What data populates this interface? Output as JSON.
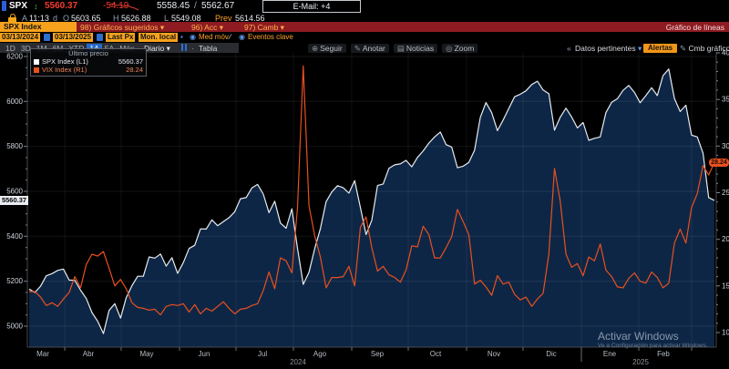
{
  "colors": {
    "amber": "#f6a21d",
    "red_bar": "#8e1b21",
    "down_red": "#f53b30",
    "selected_blue": "#2569c8",
    "spx_line": "#e7ecf1",
    "spx_fill": "#0e2646",
    "vix_line": "#e8501e"
  },
  "quote_bar": {
    "ticker": "SPX",
    "last": "5560.37",
    "change": "-54.19",
    "bid": "5558.45",
    "sep": "/",
    "ask": "5562.67",
    "email": "E-Mail: +4"
  },
  "ohlc_bar": {
    "a": "A",
    "time": "11:13",
    "d": "d",
    "o_label": "O",
    "open": "5603.65",
    "h_label": "H",
    "high": "5626.88",
    "l_label": "L",
    "low": "5549.08",
    "prev_label": "Prev",
    "prev": "5614.56"
  },
  "menu_bar": {
    "security": "SPX Index",
    "items": [
      "98) Gráficos sugeridos ▾",
      "96) Acc ▾",
      "97) Camb ▾"
    ],
    "chart_type": "Gráfico de líneas"
  },
  "settings_bar": {
    "date_from": "03/13/2024",
    "date_to": "03/13/2025",
    "price_source": "Last Px",
    "currency": "Mon. local",
    "mov_avg": "Med móv",
    "key_events": "Eventos clave"
  },
  "toolbar": {
    "periods": [
      "1D",
      "3D",
      "1M",
      "6M",
      "YTD",
      "1A",
      "5A",
      "Máx"
    ],
    "selected_period": "1A",
    "interval": "Diario",
    "table_label": "Tabla",
    "relevant_data": "Datos pertinentes",
    "alerts_button": "Alertas",
    "edit_chart": "Cmb gráfico"
  },
  "chart_toolbar": [
    {
      "icon": "track-icon",
      "label": "Seguir"
    },
    {
      "icon": "pencil-icon",
      "label": "Anotar"
    },
    {
      "icon": "news-icon",
      "label": "Noticias"
    },
    {
      "icon": "zoom-icon",
      "label": "Zoom"
    }
  ],
  "legend": {
    "title": "Último precio",
    "rows": [
      {
        "name": "SPX Index (L1)",
        "value": "5560.37"
      },
      {
        "name": "VIX Index (R1)",
        "value": "28.24"
      }
    ]
  },
  "badges": {
    "left_price": "5560.37",
    "right_price": "28.24"
  },
  "watermark": {
    "line1": "Activar Windows",
    "line2": "Ve a Configuración para activar Windows."
  },
  "chart_data": {
    "type": "line",
    "x_range": [
      "03/13/2024",
      "03/13/2025"
    ],
    "x_month_labels": [
      "Mar",
      "Abr",
      "May",
      "Jun",
      "Jul",
      "Ago",
      "Sep",
      "Oct",
      "Nov",
      "Dic",
      "Ene",
      "Feb"
    ],
    "years": [
      "2024",
      "2025"
    ],
    "left_axis": {
      "label": "SPX",
      "min": 5000,
      "max": 6200,
      "ticks": [
        6200,
        6000,
        5800,
        5600,
        5400,
        5200,
        5000
      ]
    },
    "right_axis": {
      "label": "VIX",
      "min": 10,
      "max": 40,
      "ticks": [
        40,
        35,
        30,
        25,
        20,
        15,
        10
      ]
    },
    "grid": true,
    "series": [
      {
        "name": "SPX Index",
        "axis": "left",
        "color": "#e7ecf1",
        "fill": "#0e2646",
        "last": 5560.37,
        "values": [
          5165,
          5150,
          5178,
          5224,
          5234,
          5248,
          5254,
          5205,
          5204,
          5160,
          5123,
          5061,
          5022,
          4967,
          5070,
          5100,
          5036,
          5127,
          5180,
          5222,
          5222,
          5308,
          5303,
          5321,
          5267,
          5305,
          5235,
          5283,
          5346,
          5360,
          5433,
          5432,
          5473,
          5447,
          5465,
          5483,
          5509,
          5567,
          5572,
          5615,
          5631,
          5588,
          5505,
          5556,
          5459,
          5436,
          5522,
          5346,
          5186,
          5240,
          5344,
          5434,
          5554,
          5597,
          5625,
          5616,
          5592,
          5648,
          5528,
          5408,
          5471,
          5626,
          5633,
          5702,
          5718,
          5722,
          5738,
          5709,
          5751,
          5780,
          5815,
          5842,
          5864,
          5808,
          5797,
          5705,
          5712,
          5729,
          5783,
          5929,
          5995,
          5950,
          5870,
          5917,
          5969,
          6021,
          6032,
          6047,
          6075,
          6090,
          6051,
          6034,
          5872,
          5930,
          5970,
          5931,
          5882,
          5906,
          5827,
          5836,
          5842,
          5950,
          5996,
          6012,
          6049,
          6071,
          6040,
          5994,
          6026,
          6061,
          6026,
          6115,
          6144,
          6013,
          5955,
          5983,
          5850,
          5842,
          5770,
          5572,
          5560
        ]
      },
      {
        "name": "VIX Index",
        "axis": "right",
        "color": "#e8501e",
        "last": 28.24,
        "values": [
          14.4,
          14.4,
          13.8,
          12.9,
          13.2,
          12.8,
          13.6,
          14.3,
          16.0,
          14.8,
          17.3,
          18.4,
          18.2,
          18.7,
          16.9,
          15.0,
          15.7,
          14.7,
          13.2,
          12.7,
          12.6,
          12.4,
          12.5,
          11.9,
          12.8,
          13.0,
          12.9,
          13.1,
          12.2,
          13.0,
          12.0,
          12.6,
          12.3,
          12.8,
          13.3,
          12.6,
          12.0,
          12.5,
          12.6,
          12.9,
          13.1,
          14.5,
          16.5,
          14.7,
          18.0,
          17.7,
          16.4,
          23.4,
          38.6,
          23.6,
          20.4,
          18.1,
          14.8,
          15.9,
          15.9,
          16.0,
          17.1,
          15.0,
          21.3,
          22.4,
          19.1,
          16.6,
          17.1,
          16.2,
          15.9,
          15.4,
          16.7,
          19.3,
          19.2,
          21.4,
          20.5,
          18.0,
          18.0,
          19.1,
          20.3,
          23.2,
          21.9,
          20.5,
          15.2,
          15.6,
          14.9,
          14.0,
          16.1,
          15.2,
          15.4,
          14.1,
          13.5,
          13.8,
          12.8,
          13.6,
          14.2,
          18.4,
          27.6,
          24.1,
          18.4,
          17.0,
          17.4,
          16.1,
          18.1,
          17.7,
          19.5,
          16.7,
          16.0,
          14.9,
          14.8,
          15.8,
          16.4,
          15.5,
          15.3,
          16.5,
          15.9,
          14.8,
          15.3,
          19.6,
          21.1,
          19.6,
          23.4,
          24.9,
          27.9,
          26.9,
          28.24
        ]
      }
    ]
  }
}
